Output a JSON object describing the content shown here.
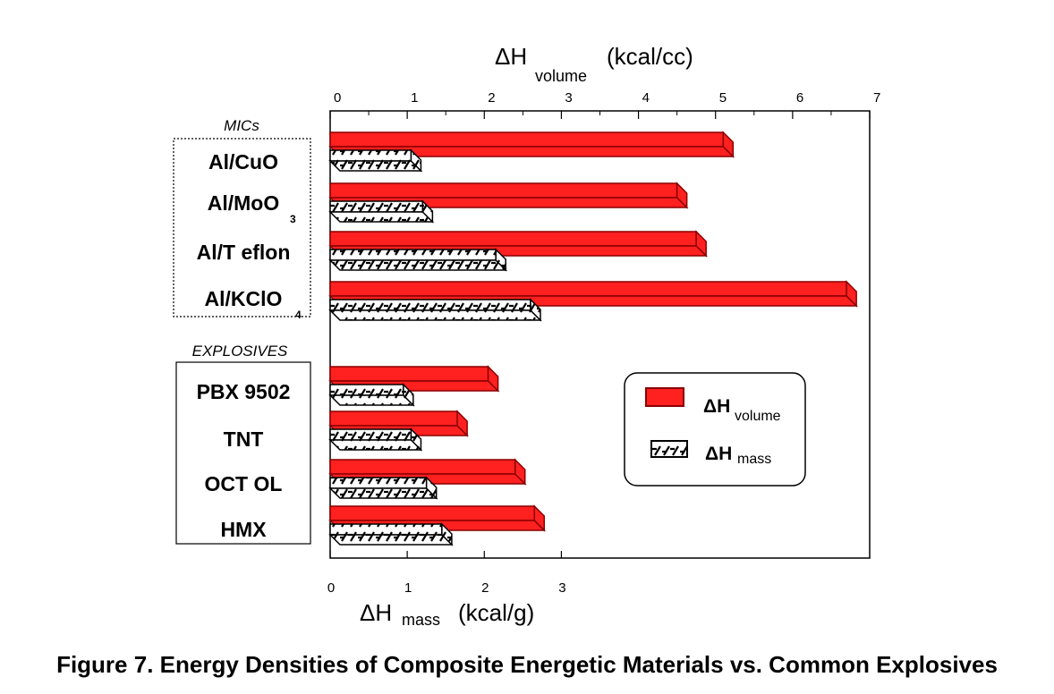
{
  "caption": "Figure 7.  Energy Densities of Composite Energetic Materials vs. Common Explosives",
  "colors": {
    "volume_fill": "#ff2020",
    "volume_stroke": "#8a0000",
    "mass_fill": "#ffffff",
    "mass_stroke": "#000000"
  },
  "chart_data": {
    "type": "bar",
    "orientation": "horizontal",
    "top_axis": {
      "title": "ΔH",
      "title_sub": "volume",
      "unit": "(kcal/cc)",
      "range": [
        0,
        7
      ],
      "ticks": [
        "0",
        "1",
        "2",
        "3",
        "4",
        "5",
        "6",
        "7"
      ]
    },
    "bottom_axis": {
      "title": "ΔH",
      "title_sub": "mass",
      "unit": "(kcal/g)",
      "range": [
        0,
        7
      ],
      "ticks": [
        "0",
        "1",
        "2",
        "3"
      ]
    },
    "groups": [
      {
        "label": "MICs",
        "categories": [
          {
            "name": "Al/CuO",
            "sub": ""
          },
          {
            "name": "Al/MoO",
            "sub": "3"
          },
          {
            "name": "Al/T eflon",
            "sub": ""
          },
          {
            "name": "Al/KClO",
            "sub": "4"
          }
        ]
      },
      {
        "label": "EXPLOSIVES",
        "categories": [
          {
            "name": "PBX 9502",
            "sub": ""
          },
          {
            "name": "TNT",
            "sub": ""
          },
          {
            "name": "OCT OL",
            "sub": ""
          },
          {
            "name": "HMX",
            "sub": ""
          }
        ]
      }
    ],
    "series": [
      {
        "name": "ΔH",
        "name_sub": "volume",
        "axis": "top",
        "values": [
          5.1,
          4.5,
          4.75,
          6.7,
          2.05,
          1.65,
          2.4,
          2.65
        ]
      },
      {
        "name": "ΔH",
        "name_sub": "mass",
        "axis": "bottom",
        "values": [
          1.05,
          1.2,
          2.15,
          2.6,
          0.95,
          1.05,
          1.25,
          1.45
        ]
      }
    ],
    "legend": "right-middle",
    "grid": false
  }
}
